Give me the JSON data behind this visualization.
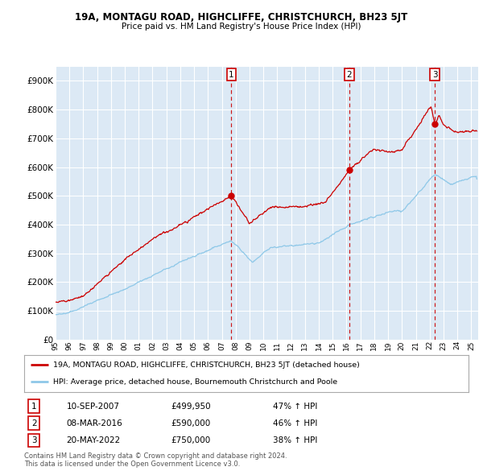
{
  "title": "19A, MONTAGU ROAD, HIGHCLIFFE, CHRISTCHURCH, BH23 5JT",
  "subtitle": "Price paid vs. HM Land Registry's House Price Index (HPI)",
  "legend_red": "19A, MONTAGU ROAD, HIGHCLIFFE, CHRISTCHURCH, BH23 5JT (detached house)",
  "legend_blue": "HPI: Average price, detached house, Bournemouth Christchurch and Poole",
  "transactions": [
    {
      "num": 1,
      "date": "10-SEP-2007",
      "price": 499950,
      "hpi_pct": "47% ↑ HPI",
      "year": 2007.69
    },
    {
      "num": 2,
      "date": "08-MAR-2016",
      "price": 590000,
      "hpi_pct": "46% ↑ HPI",
      "year": 2016.19
    },
    {
      "num": 3,
      "date": "20-MAY-2022",
      "price": 750000,
      "hpi_pct": "38% ↑ HPI",
      "year": 2022.38
    }
  ],
  "footer1": "Contains HM Land Registry data © Crown copyright and database right 2024.",
  "footer2": "This data is licensed under the Open Government Licence v3.0.",
  "ylim": [
    0,
    950000
  ],
  "xlim_start": 1995.0,
  "xlim_end": 2025.5,
  "plot_bg_color": "#dce9f5",
  "grid_color": "#ffffff",
  "red_line_color": "#cc0000",
  "blue_line_color": "#8ec8e8",
  "dot_color": "#cc0000"
}
